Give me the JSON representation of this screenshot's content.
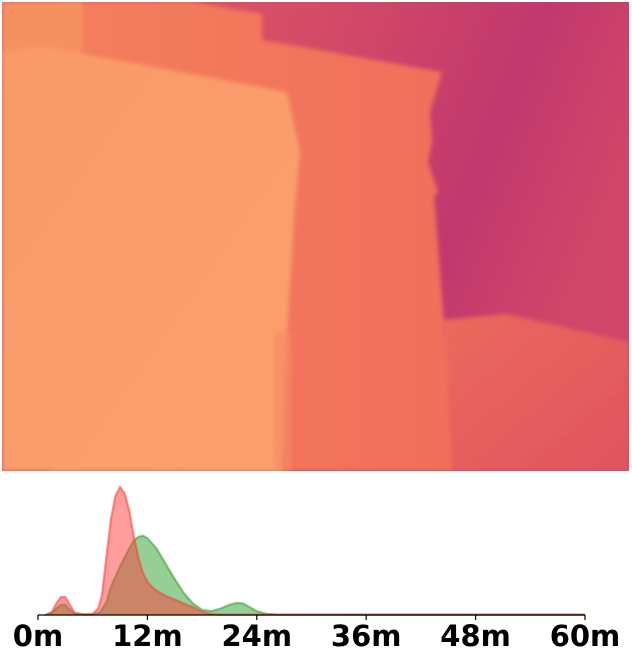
{
  "depth_image": {
    "colormap": "magma",
    "palette": [
      "#f9a26c",
      "#f2775c",
      "#e3595f",
      "#c1386e"
    ]
  },
  "chart_data": {
    "type": "area",
    "title": "",
    "xlabel": "",
    "ylabel": "",
    "x_unit": "m",
    "xlim": [
      0,
      60
    ],
    "ylim": [
      0,
      1
    ],
    "x_ticks": [
      0,
      12,
      24,
      36,
      48,
      60
    ],
    "x_tick_labels": [
      "0m",
      "12m",
      "24m",
      "36m",
      "48m",
      "60m"
    ],
    "grid": false,
    "legend": "none",
    "series": [
      {
        "color": "#ff3b3b",
        "x": [
          0.8,
          1.5,
          2.0,
          2.5,
          3.0,
          3.5,
          4.0,
          5.0,
          6.0,
          6.6,
          7.0,
          7.5,
          8.0,
          8.5,
          9.0,
          9.5,
          10.0,
          10.5,
          11.0,
          11.5,
          12.0,
          12.5,
          13.0,
          13.5,
          14.0,
          15.0,
          16.0,
          17.0,
          18.0,
          18.8,
          19.4,
          20.0,
          24.0,
          36.0,
          48.0,
          60.0
        ],
        "values": [
          0,
          0.02,
          0.09,
          0.14,
          0.14,
          0.08,
          0.02,
          0.005,
          0.01,
          0.05,
          0.15,
          0.45,
          0.75,
          0.93,
          1.0,
          0.95,
          0.82,
          0.62,
          0.45,
          0.33,
          0.26,
          0.22,
          0.19,
          0.17,
          0.15,
          0.12,
          0.09,
          0.06,
          0.025,
          0.01,
          0.005,
          0.003,
          0.003,
          0.003,
          0.003,
          0.003
        ]
      },
      {
        "color": "#2ca02c",
        "x": [
          0.8,
          1.5,
          2.0,
          2.5,
          3.0,
          3.5,
          4.0,
          5.0,
          6.0,
          6.8,
          7.5,
          8.0,
          9.0,
          10.0,
          10.5,
          11.0,
          11.5,
          12.0,
          13.0,
          14.0,
          15.0,
          16.0,
          17.0,
          18.0,
          19.0,
          20.0,
          21.0,
          21.8,
          22.5,
          23.0,
          24.0,
          25.0,
          26.0,
          36.0,
          48.0,
          60.0
        ],
        "values": [
          0,
          0.02,
          0.05,
          0.08,
          0.08,
          0.04,
          0.01,
          0.003,
          0.003,
          0.02,
          0.1,
          0.22,
          0.38,
          0.52,
          0.58,
          0.61,
          0.62,
          0.6,
          0.52,
          0.4,
          0.28,
          0.17,
          0.09,
          0.04,
          0.03,
          0.05,
          0.08,
          0.095,
          0.09,
          0.07,
          0.03,
          0.01,
          0.004,
          0.003,
          0.003,
          0.003
        ]
      }
    ]
  }
}
